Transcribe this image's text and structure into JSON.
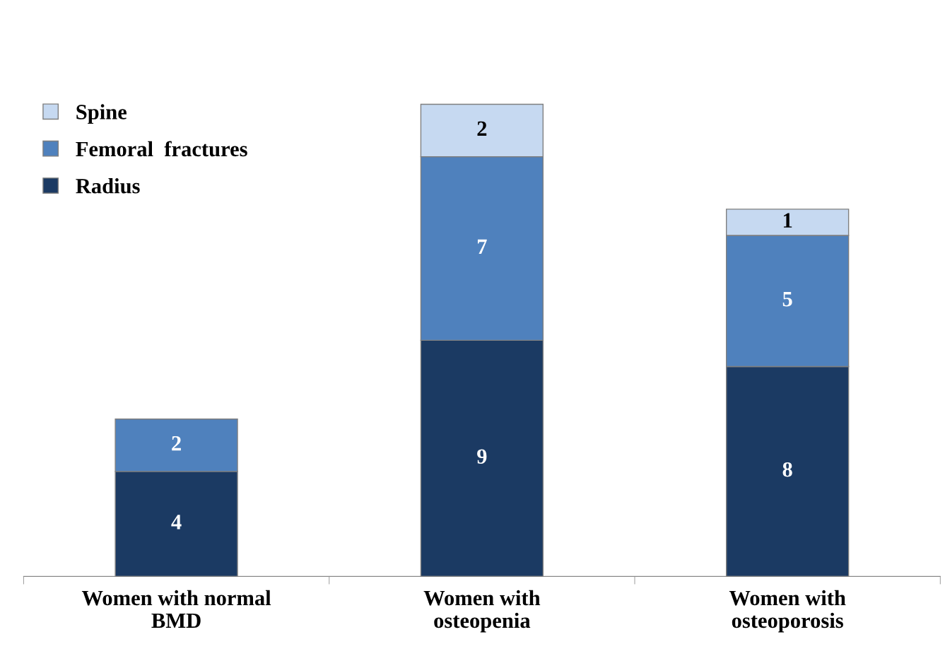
{
  "chart_data": {
    "type": "bar",
    "stacked": true,
    "data_labels": true,
    "legend": "top left",
    "grid": false,
    "categories": [
      "Women with normal\nBMD",
      "Women with\nosteopenia",
      "Women with\nosteoporosis"
    ],
    "series": [
      {
        "name": "Radius",
        "color": "#1b3a63",
        "values": [
          4,
          9,
          8
        ]
      },
      {
        "name": "Femoral  fractures",
        "color": "#4f81bd",
        "values": [
          2,
          7,
          5
        ]
      },
      {
        "name": "Spine",
        "color": "#c6d9f1",
        "values": [
          null,
          2,
          1
        ]
      }
    ]
  }
}
